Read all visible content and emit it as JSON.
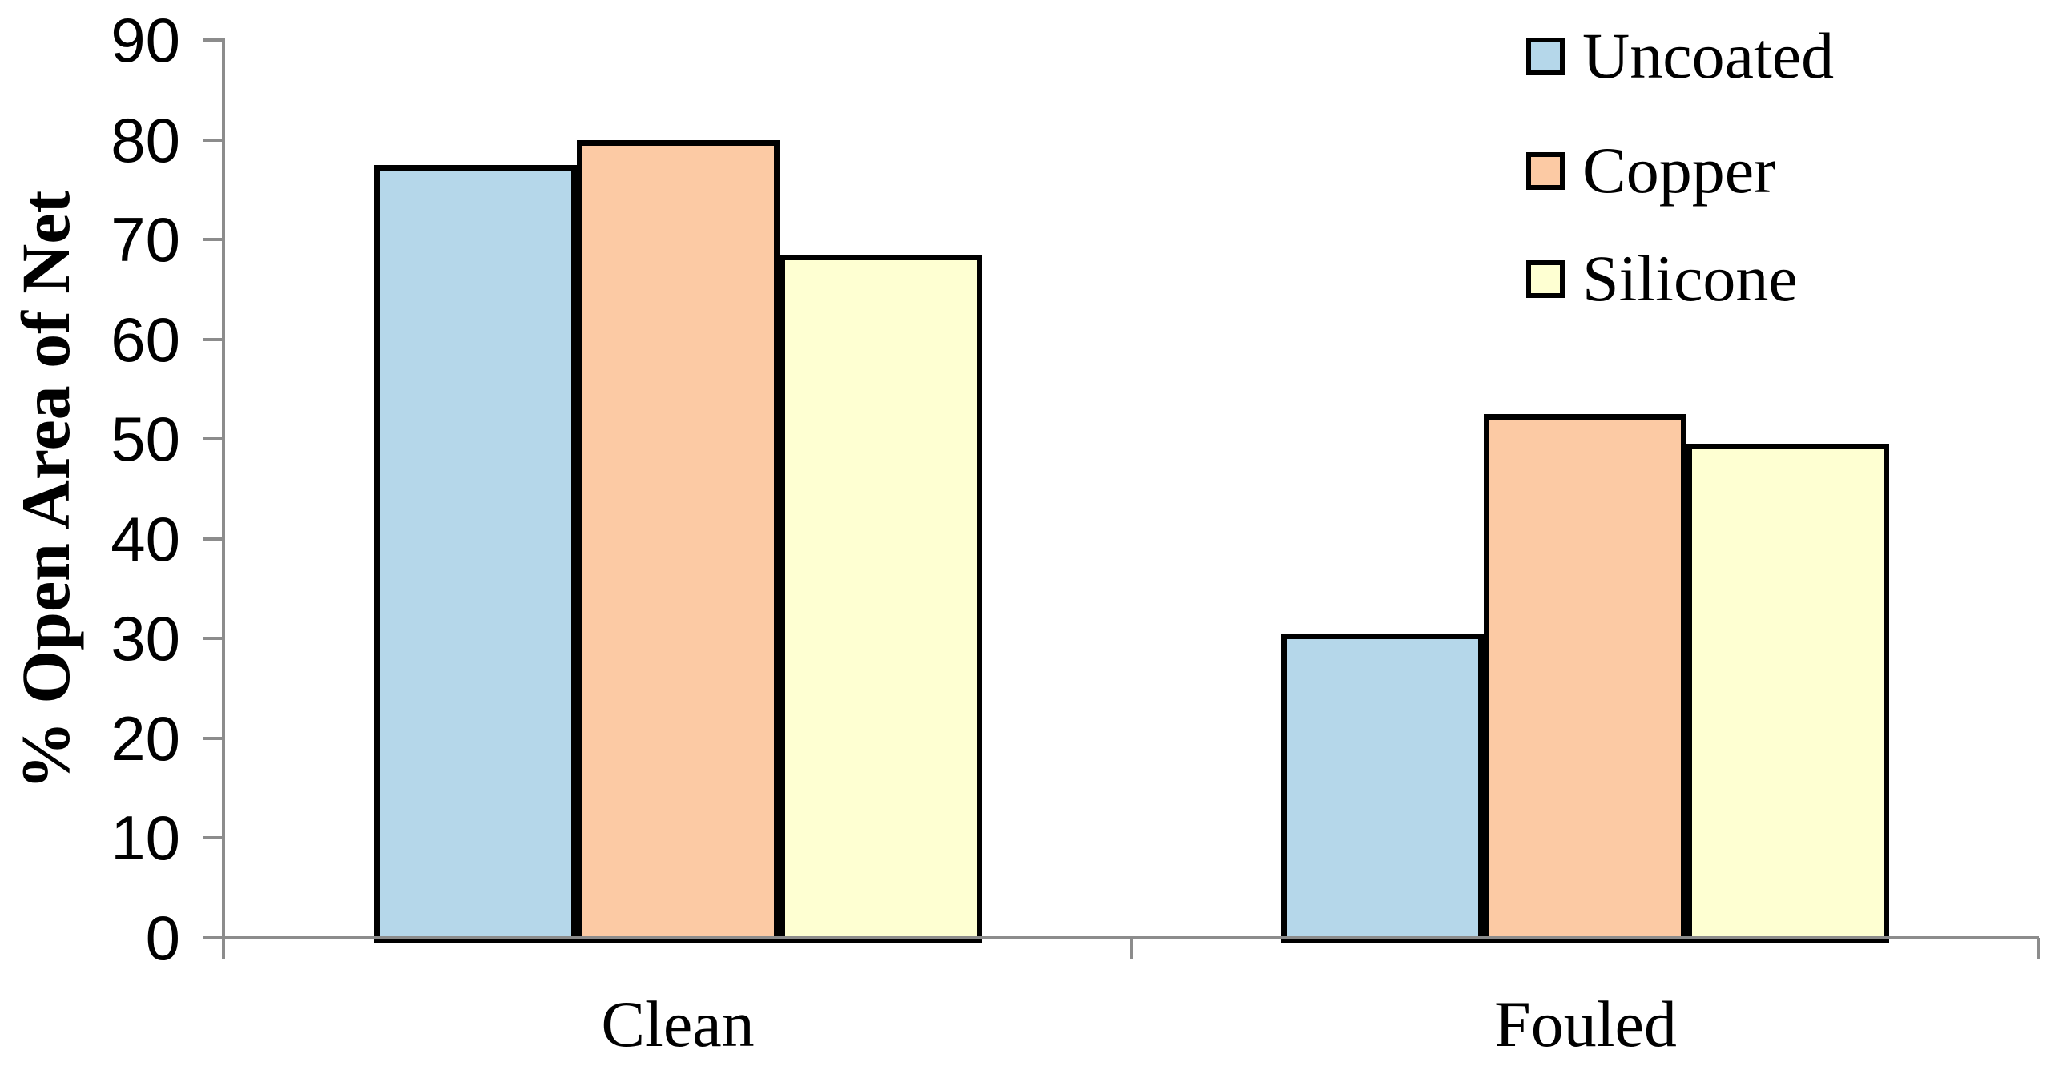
{
  "chart_data": {
    "type": "bar",
    "title": "",
    "categories": [
      "Clean",
      "Fouled"
    ],
    "series": [
      {
        "name": "Uncoated",
        "color": "#B5D7EA",
        "values": [
          77.5,
          30.5
        ]
      },
      {
        "name": "Copper",
        "color": "#FCCAA4",
        "values": [
          80.0,
          52.5
        ]
      },
      {
        "name": "Silicone",
        "color": "#FEFFD2",
        "values": [
          68.5,
          49.5
        ]
      }
    ],
    "xlabel": "",
    "ylabel": "% Open Area of Net",
    "ylim": [
      0,
      90
    ],
    "ytick_step": 10,
    "ytick_labels": [
      "0",
      "10",
      "20",
      "30",
      "40",
      "50",
      "60",
      "70",
      "80",
      "90"
    ],
    "grid": false,
    "legend_position": "top-right",
    "bar_border_color": "#000000",
    "axis_color": "#8C8C8C",
    "background_color": "#FFFFFF"
  }
}
